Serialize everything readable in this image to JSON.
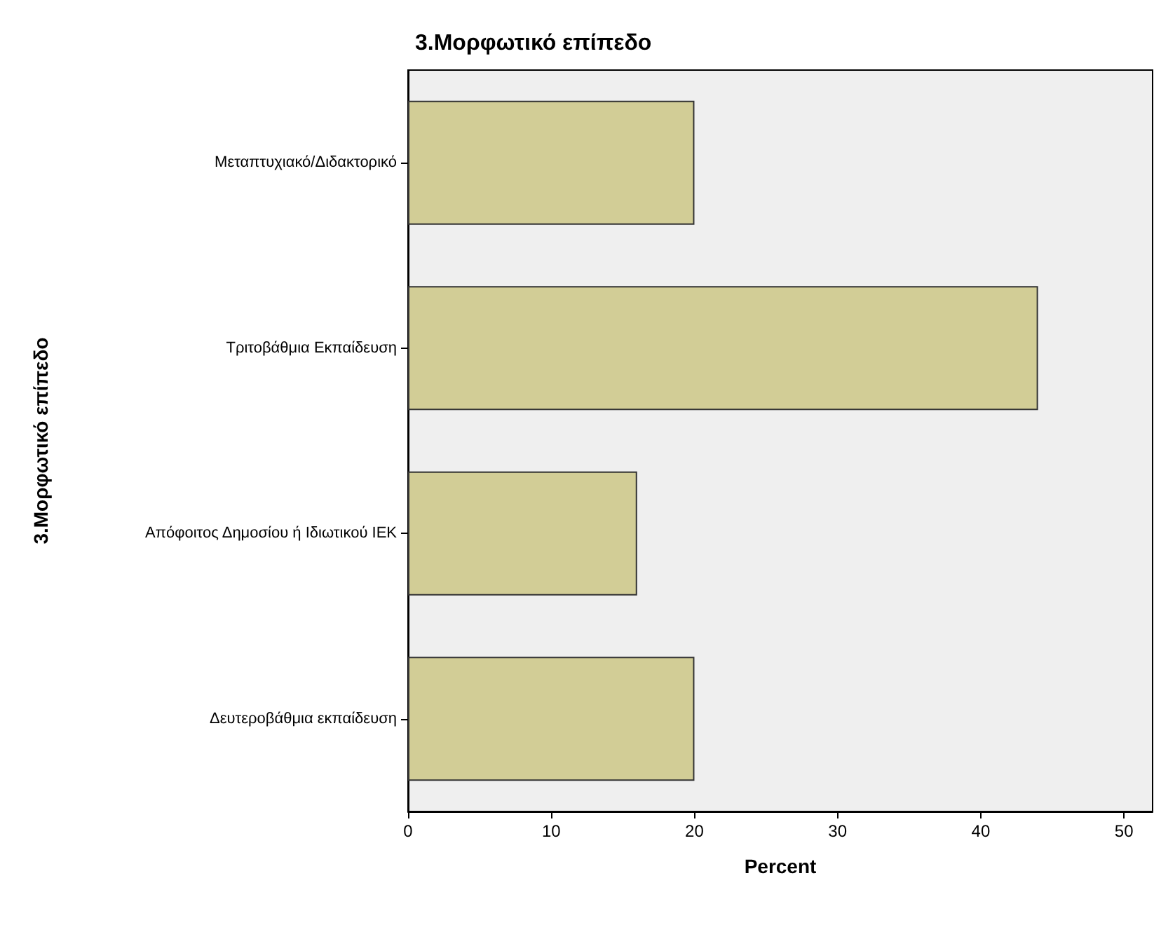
{
  "chart_data": {
    "type": "bar",
    "orientation": "horizontal",
    "title": "3.Μορφωτικό επίπεδο",
    "xlabel": "Percent",
    "ylabel": "3.Μορφωτικό επίπεδο",
    "categories": [
      "Μεταπτυχιακό/Διδακτορικό",
      "Τριτοβάθμια Εκπαίδευση",
      "Απόφοιτος Δημοσίου ή Ιδιωτικού ΙΕΚ",
      "Δευτεροβάθμια εκπαίδευση"
    ],
    "values": [
      20,
      44,
      16,
      20
    ],
    "color": "#d2cd96",
    "xlim": [
      0,
      52
    ],
    "xticks": [
      0,
      10,
      20,
      30,
      40,
      50
    ],
    "grid": false
  }
}
